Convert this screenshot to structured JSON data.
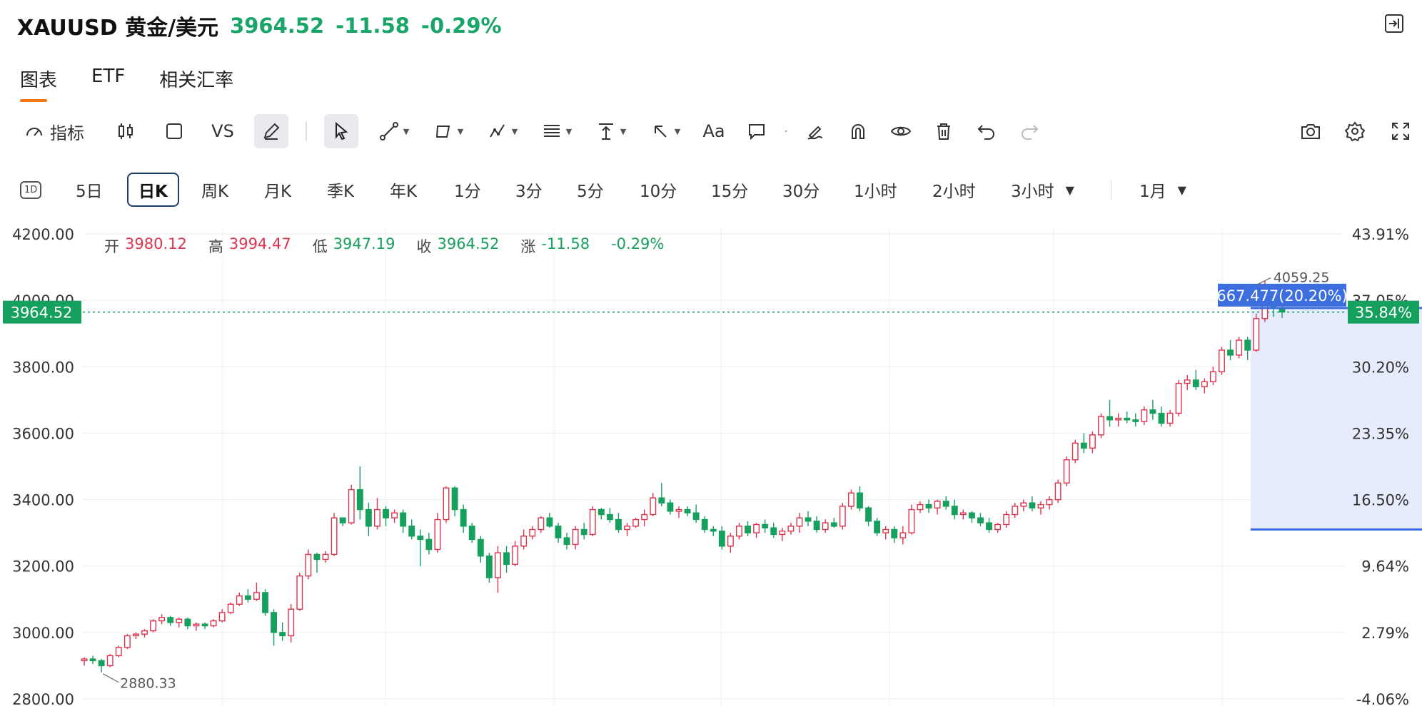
{
  "header": {
    "symbol": "XAUUSD 黄金/美元",
    "price": "3964.52",
    "change": "-11.58",
    "change_pct": "-0.29%"
  },
  "tabs": [
    "图表",
    "ETF",
    "相关汇率"
  ],
  "toolbar": {
    "indicators_label": "指标",
    "vs_label": "VS",
    "text_tool_label": "Aa"
  },
  "intervals": {
    "badge": "1D",
    "items": [
      "5日",
      "日K",
      "周K",
      "月K",
      "季K",
      "年K",
      "1分",
      "3分",
      "5分",
      "10分",
      "15分",
      "30分",
      "1小时",
      "2小时",
      "3小时"
    ],
    "selected": "日K",
    "range": "1月"
  },
  "ohlc": {
    "open_label": "开",
    "open": "3980.12",
    "high_label": "高",
    "high": "3994.47",
    "low_label": "低",
    "low": "3947.19",
    "close_label": "收",
    "close": "3964.52",
    "change_label": "涨",
    "change": "-11.58",
    "change_pct": "-0.29%"
  },
  "colors": {
    "up": "#e0334d",
    "down": "#16a05e",
    "accent": "#f0771c",
    "measure": "#3d6ee0"
  },
  "chart_data": {
    "type": "candlestick",
    "y_ticks": [
      "4200.00",
      "4000.00",
      "3800.00",
      "3600.00",
      "3400.00",
      "3200.00",
      "3000.00",
      "2800.00"
    ],
    "pct_ticks": [
      "43.91%",
      "37.05%",
      "30.20%",
      "23.35%",
      "16.50%",
      "9.64%",
      "2.79%",
      "-4.06%"
    ],
    "ylim": [
      2800,
      4200
    ],
    "last_price_label": "3964.52",
    "last_pct_label": "35.84%",
    "last_price": 3964.52,
    "max_label": "4059.25",
    "min_label": "2880.33",
    "measure_label": "667.477(20.20%)",
    "measure": {
      "from_index": 136,
      "to_index": 180,
      "low": 3310,
      "high": 3977
    },
    "ohlc": [
      [
        2915,
        2925,
        2900,
        2920
      ],
      [
        2920,
        2930,
        2905,
        2915
      ],
      [
        2915,
        2920,
        2880,
        2900
      ],
      [
        2900,
        2935,
        2895,
        2930
      ],
      [
        2930,
        2960,
        2925,
        2955
      ],
      [
        2955,
        2995,
        2950,
        2990
      ],
      [
        2990,
        3000,
        2980,
        2995
      ],
      [
        2995,
        3010,
        2985,
        3005
      ],
      [
        3005,
        3040,
        3000,
        3035
      ],
      [
        3035,
        3055,
        3025,
        3045
      ],
      [
        3045,
        3050,
        3020,
        3030
      ],
      [
        3030,
        3045,
        3015,
        3040
      ],
      [
        3040,
        3045,
        3010,
        3020
      ],
      [
        3020,
        3030,
        3005,
        3025
      ],
      [
        3025,
        3030,
        3010,
        3020
      ],
      [
        3020,
        3040,
        3015,
        3035
      ],
      [
        3035,
        3070,
        3030,
        3060
      ],
      [
        3060,
        3090,
        3055,
        3085
      ],
      [
        3085,
        3120,
        3080,
        3110
      ],
      [
        3110,
        3130,
        3090,
        3100
      ],
      [
        3100,
        3150,
        3095,
        3120
      ],
      [
        3120,
        3130,
        3050,
        3060
      ],
      [
        3060,
        3070,
        2960,
        3000
      ],
      [
        3000,
        3030,
        2975,
        2990
      ],
      [
        2990,
        3085,
        2970,
        3070
      ],
      [
        3070,
        3180,
        3065,
        3170
      ],
      [
        3170,
        3250,
        3160,
        3235
      ],
      [
        3235,
        3240,
        3180,
        3220
      ],
      [
        3220,
        3245,
        3210,
        3235
      ],
      [
        3235,
        3360,
        3230,
        3345
      ],
      [
        3345,
        3340,
        3320,
        3330
      ],
      [
        3330,
        3445,
        3325,
        3430
      ],
      [
        3430,
        3500,
        3340,
        3370
      ],
      [
        3370,
        3390,
        3290,
        3320
      ],
      [
        3320,
        3405,
        3310,
        3370
      ],
      [
        3370,
        3380,
        3320,
        3345
      ],
      [
        3345,
        3370,
        3330,
        3360
      ],
      [
        3360,
        3370,
        3300,
        3320
      ],
      [
        3320,
        3340,
        3280,
        3290
      ],
      [
        3290,
        3310,
        3200,
        3280
      ],
      [
        3280,
        3300,
        3235,
        3250
      ],
      [
        3250,
        3360,
        3240,
        3340
      ],
      [
        3340,
        3440,
        3330,
        3435
      ],
      [
        3435,
        3440,
        3350,
        3370
      ],
      [
        3370,
        3385,
        3300,
        3320
      ],
      [
        3320,
        3330,
        3270,
        3280
      ],
      [
        3280,
        3290,
        3210,
        3230
      ],
      [
        3230,
        3240,
        3150,
        3165
      ],
      [
        3165,
        3260,
        3120,
        3240
      ],
      [
        3240,
        3260,
        3180,
        3205
      ],
      [
        3205,
        3275,
        3200,
        3260
      ],
      [
        3260,
        3310,
        3250,
        3290
      ],
      [
        3290,
        3320,
        3280,
        3310
      ],
      [
        3310,
        3350,
        3300,
        3345
      ],
      [
        3345,
        3360,
        3315,
        3320
      ],
      [
        3320,
        3330,
        3270,
        3285
      ],
      [
        3285,
        3300,
        3250,
        3265
      ],
      [
        3265,
        3320,
        3250,
        3310
      ],
      [
        3310,
        3330,
        3280,
        3295
      ],
      [
        3295,
        3380,
        3290,
        3370
      ],
      [
        3370,
        3375,
        3340,
        3355
      ],
      [
        3355,
        3375,
        3330,
        3340
      ],
      [
        3340,
        3360,
        3300,
        3310
      ],
      [
        3310,
        3330,
        3290,
        3320
      ],
      [
        3320,
        3345,
        3315,
        3340
      ],
      [
        3340,
        3370,
        3320,
        3355
      ],
      [
        3355,
        3420,
        3350,
        3405
      ],
      [
        3405,
        3450,
        3380,
        3390
      ],
      [
        3390,
        3400,
        3355,
        3365
      ],
      [
        3365,
        3380,
        3345,
        3370
      ],
      [
        3370,
        3380,
        3350,
        3360
      ],
      [
        3360,
        3385,
        3330,
        3340
      ],
      [
        3340,
        3350,
        3300,
        3310
      ],
      [
        3310,
        3320,
        3290,
        3305
      ],
      [
        3305,
        3320,
        3250,
        3260
      ],
      [
        3260,
        3300,
        3240,
        3290
      ],
      [
        3290,
        3330,
        3280,
        3320
      ],
      [
        3320,
        3335,
        3290,
        3300
      ],
      [
        3300,
        3330,
        3285,
        3325
      ],
      [
        3325,
        3340,
        3300,
        3315
      ],
      [
        3315,
        3330,
        3285,
        3295
      ],
      [
        3295,
        3315,
        3275,
        3305
      ],
      [
        3305,
        3330,
        3295,
        3320
      ],
      [
        3320,
        3360,
        3300,
        3345
      ],
      [
        3345,
        3365,
        3320,
        3335
      ],
      [
        3335,
        3350,
        3300,
        3310
      ],
      [
        3310,
        3340,
        3300,
        3330
      ],
      [
        3330,
        3345,
        3315,
        3320
      ],
      [
        3320,
        3390,
        3310,
        3380
      ],
      [
        3380,
        3430,
        3370,
        3420
      ],
      [
        3420,
        3440,
        3365,
        3375
      ],
      [
        3375,
        3380,
        3320,
        3335
      ],
      [
        3335,
        3345,
        3290,
        3300
      ],
      [
        3300,
        3320,
        3280,
        3310
      ],
      [
        3310,
        3320,
        3270,
        3285
      ],
      [
        3285,
        3320,
        3265,
        3300
      ],
      [
        3300,
        3385,
        3295,
        3370
      ],
      [
        3370,
        3395,
        3360,
        3385
      ],
      [
        3385,
        3400,
        3360,
        3375
      ],
      [
        3375,
        3400,
        3355,
        3395
      ],
      [
        3395,
        3410,
        3370,
        3380
      ],
      [
        3380,
        3400,
        3340,
        3355
      ],
      [
        3355,
        3370,
        3340,
        3360
      ],
      [
        3360,
        3365,
        3330,
        3345
      ],
      [
        3345,
        3360,
        3320,
        3330
      ],
      [
        3330,
        3345,
        3300,
        3310
      ],
      [
        3310,
        3330,
        3300,
        3325
      ],
      [
        3325,
        3365,
        3315,
        3355
      ],
      [
        3355,
        3390,
        3345,
        3380
      ],
      [
        3380,
        3400,
        3365,
        3390
      ],
      [
        3390,
        3410,
        3365,
        3375
      ],
      [
        3375,
        3395,
        3355,
        3385
      ],
      [
        3385,
        3410,
        3370,
        3400
      ],
      [
        3400,
        3460,
        3390,
        3450
      ],
      [
        3450,
        3530,
        3440,
        3520
      ],
      [
        3520,
        3580,
        3510,
        3570
      ],
      [
        3570,
        3600,
        3540,
        3555
      ],
      [
        3555,
        3605,
        3540,
        3595
      ],
      [
        3595,
        3660,
        3585,
        3650
      ],
      [
        3650,
        3700,
        3620,
        3640
      ],
      [
        3640,
        3660,
        3620,
        3645
      ],
      [
        3645,
        3665,
        3630,
        3640
      ],
      [
        3640,
        3660,
        3620,
        3635
      ],
      [
        3635,
        3680,
        3625,
        3670
      ],
      [
        3670,
        3700,
        3640,
        3660
      ],
      [
        3660,
        3680,
        3620,
        3630
      ],
      [
        3630,
        3670,
        3620,
        3660
      ],
      [
        3660,
        3760,
        3650,
        3750
      ],
      [
        3750,
        3775,
        3730,
        3760
      ],
      [
        3760,
        3790,
        3730,
        3740
      ],
      [
        3740,
        3765,
        3720,
        3755
      ],
      [
        3755,
        3800,
        3745,
        3785
      ],
      [
        3785,
        3860,
        3775,
        3850
      ],
      [
        3850,
        3880,
        3820,
        3835
      ],
      [
        3835,
        3890,
        3825,
        3880
      ],
      [
        3880,
        3890,
        3820,
        3850
      ],
      [
        3850,
        3960,
        3845,
        3945
      ],
      [
        3945,
        4059,
        3935,
        3985
      ],
      [
        3985,
        4000,
        3950,
        3976
      ],
      [
        3976,
        3994,
        3947,
        3965
      ]
    ],
    "ohlc_note": "prices"
  }
}
